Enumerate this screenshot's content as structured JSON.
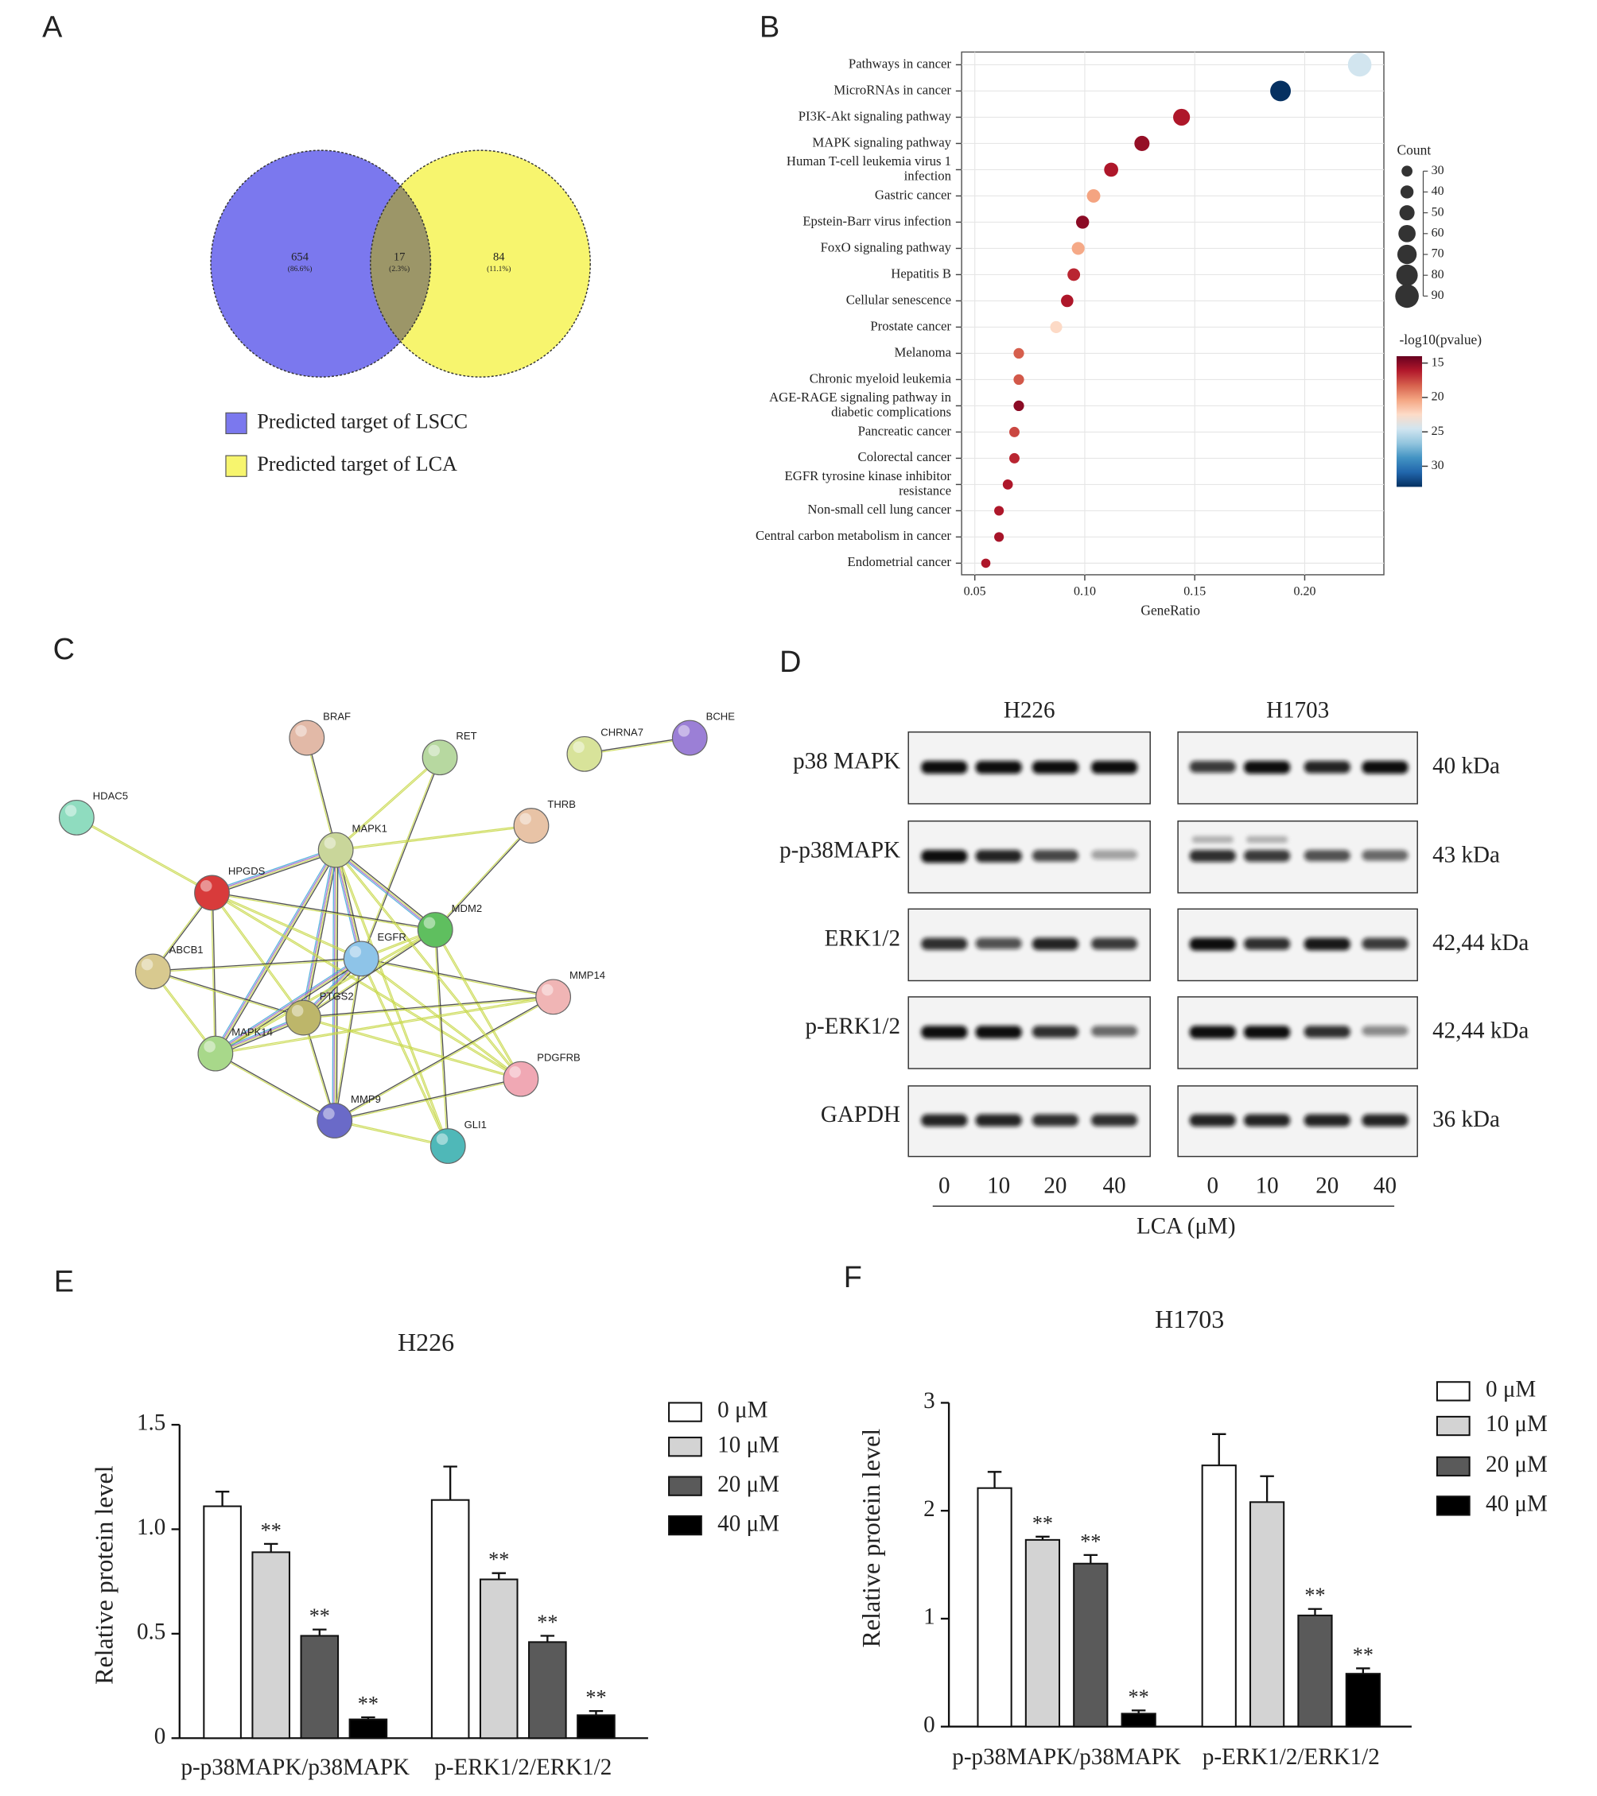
{
  "chart_data": [
    {
      "panel": "A",
      "type": "venn",
      "sets": [
        "Predicted target of LSCC",
        "Predicted target of LCA"
      ],
      "colors": [
        "#7b78ee",
        "#f7f56e"
      ],
      "values": [
        654,
        17,
        84
      ],
      "value_percents": [
        "(86.6%)",
        "(2.3%)",
        "(11.1%)"
      ]
    },
    {
      "panel": "B",
      "type": "dot",
      "categories": [
        "Pathways in cancer",
        "MicroRNAs in cancer",
        "PI3K-Akt signaling pathway",
        "MAPK signaling pathway",
        "Human T-cell leukemia virus 1\ninfection",
        "Gastric cancer",
        "Epstein-Barr virus infection",
        "FoxO signaling pathway",
        "Hepatitis B",
        "Cellular senescence",
        "Prostate cancer",
        "Melanoma",
        "Chronic myeloid leukemia",
        "AGE-RAGE signaling pathway in\ndiabetic complications",
        "Pancreatic cancer",
        "Colorectal cancer",
        "EGFR tyrosine kinase inhibitor\nresistance",
        "Non-small cell lung cancer",
        "Central carbon metabolism in cancer",
        "Endometrial cancer"
      ],
      "x": [
        0.225,
        0.189,
        0.144,
        0.126,
        0.112,
        0.104,
        0.099,
        0.097,
        0.095,
        0.092,
        0.087,
        0.07,
        0.07,
        0.07,
        0.068,
        0.068,
        0.065,
        0.061,
        0.061,
        0.055
      ],
      "counts": [
        90,
        76,
        58,
        50,
        45,
        42,
        40,
        39,
        38,
        37,
        35,
        28,
        28,
        28,
        27,
        27,
        26,
        24,
        24,
        22
      ],
      "colorvalues": [
        24.5,
        33,
        16,
        15.3,
        16,
        20.3,
        15,
        20.5,
        16.5,
        16,
        22.4,
        18.2,
        18,
        15,
        17.5,
        16.5,
        16,
        16,
        15.8,
        16
      ],
      "xlabel": "GeneRatio",
      "xlim": [
        0.044,
        0.236
      ],
      "xticks": [
        0.05,
        {
          "value": 0.1,
          "label": "0.10"
        },
        0.15,
        {
          "value": 0.2,
          "label": "0.20"
        }
      ],
      "size_title": "Count",
      "size_ticks": [
        30,
        40,
        50,
        60,
        70,
        80,
        90
      ],
      "color_title": "-log10(pvalue)",
      "clim": [
        14,
        33
      ],
      "cticks": [
        15,
        20,
        25,
        30
      ],
      "colormap": [
        "#67001f",
        "#b2182b",
        "#d6604d",
        "#f4a582",
        "#fddbc7",
        "#d1e5f0",
        "#92c5de",
        "#4393c3",
        "#2166ac",
        "#053061"
      ],
      "grid": true
    },
    {
      "panel": "C",
      "type": "network",
      "nodes": [
        "BRAF",
        "RET",
        "CHRNA7",
        "BCHE",
        "HDAC5",
        "THRB",
        "MAPK1",
        "HPGDS",
        "MDM2",
        "EGFR",
        "ABCB1",
        "MMP14",
        "PTGS2",
        "MAPK14",
        "PDGFRB",
        "MMP9",
        "GLI1"
      ]
    },
    {
      "panel": "D",
      "type": "blot",
      "cell_lines": [
        "H226",
        "H1703"
      ],
      "rows": [
        "p38 MAPK",
        "p-p38MAPK",
        "ERK1/2",
        "p-ERK1/2",
        "GAPDH"
      ],
      "sizes": [
        "40 kDa",
        "43 kDa",
        "42,44 kDa",
        "42,44 kDa",
        "36 kDa"
      ],
      "lanes": [
        0,
        10,
        20,
        40
      ],
      "xlabel": "LCA (μM)"
    },
    {
      "panel": "E",
      "type": "bar",
      "title": "H226",
      "categories": [
        "p-p38MAPK/p38MAPK",
        "p-ERK1/2/ERK1/2"
      ],
      "series": [
        {
          "name": "0 μM",
          "color": "#ffffff",
          "values": [
            1.11,
            1.14
          ],
          "errors": [
            0.07,
            0.16
          ]
        },
        {
          "name": "10 μM",
          "color": "#d3d3d3",
          "values": [
            0.89,
            0.76
          ],
          "errors": [
            0.04,
            0.03
          ],
          "annotations": [
            "**",
            "**"
          ]
        },
        {
          "name": "20 μM",
          "color": "#5a5a5a",
          "values": [
            0.49,
            0.46
          ],
          "errors": [
            0.03,
            0.03
          ],
          "annotations": [
            "**",
            "**"
          ]
        },
        {
          "name": "40 μM",
          "color": "#000000",
          "values": [
            0.09,
            0.11
          ],
          "errors": [
            0.01,
            0.02
          ],
          "annotations": [
            "**",
            "**"
          ]
        }
      ],
      "ylabel": "Relative protein level",
      "ylim": [
        0,
        1.5
      ],
      "yticks": [
        0,
        0.5,
        {
          "value": 1,
          "label": "1.0"
        },
        1.5
      ]
    },
    {
      "panel": "F",
      "type": "bar",
      "title": "H1703",
      "categories": [
        "p-p38MAPK/p38MAPK",
        "p-ERK1/2/ERK1/2"
      ],
      "series": [
        {
          "name": "0 μM",
          "color": "#ffffff",
          "values": [
            2.21,
            2.42
          ],
          "errors": [
            0.15,
            0.29
          ]
        },
        {
          "name": "10 μM",
          "color": "#d3d3d3",
          "values": [
            1.73,
            2.08
          ],
          "errors": [
            0.03,
            0.24
          ],
          "annotations": [
            "**",
            null
          ]
        },
        {
          "name": "20 μM",
          "color": "#5a5a5a",
          "values": [
            1.51,
            1.03
          ],
          "errors": [
            0.08,
            0.06
          ],
          "annotations": [
            "**",
            "**"
          ]
        },
        {
          "name": "40 μM",
          "color": "#000000",
          "values": [
            0.12,
            0.49
          ],
          "errors": [
            0.03,
            0.05
          ],
          "annotations": [
            "**",
            "**"
          ]
        }
      ],
      "ylabel": "Relative protein level",
      "ylim": [
        0,
        3
      ],
      "yticks": [
        0,
        1,
        2,
        3
      ]
    }
  ]
}
